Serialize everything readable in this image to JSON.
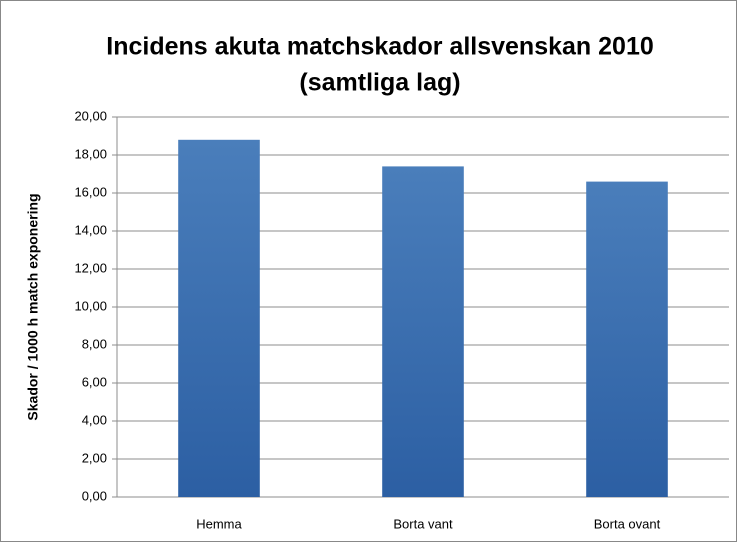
{
  "chart_data": {
    "type": "bar",
    "title": [
      "Incidens akuta matchskador allsvenskan 2010",
      "(samtliga lag)"
    ],
    "y_label": "Skador / 1000 h match exponering",
    "categories": [
      "Hemma",
      "Borta vant",
      "Borta ovant"
    ],
    "values": [
      18.8,
      17.4,
      16.6
    ],
    "color": "#4a7ebb",
    "ylim": [
      0,
      20
    ],
    "yticks": [
      {
        "value": 0,
        "label": "0,00"
      },
      {
        "value": 2,
        "label": "2,00"
      },
      {
        "value": 4,
        "label": "4,00"
      },
      {
        "value": 6,
        "label": "6,00"
      },
      {
        "value": 8,
        "label": "8,00"
      },
      {
        "value": 10,
        "label": "10,00"
      },
      {
        "value": 12,
        "label": "12,00"
      },
      {
        "value": 14,
        "label": "14,00"
      },
      {
        "value": 16,
        "label": "16,00"
      },
      {
        "value": 18,
        "label": "18,00"
      },
      {
        "value": 20,
        "label": "20,00"
      }
    ],
    "grid": true
  }
}
